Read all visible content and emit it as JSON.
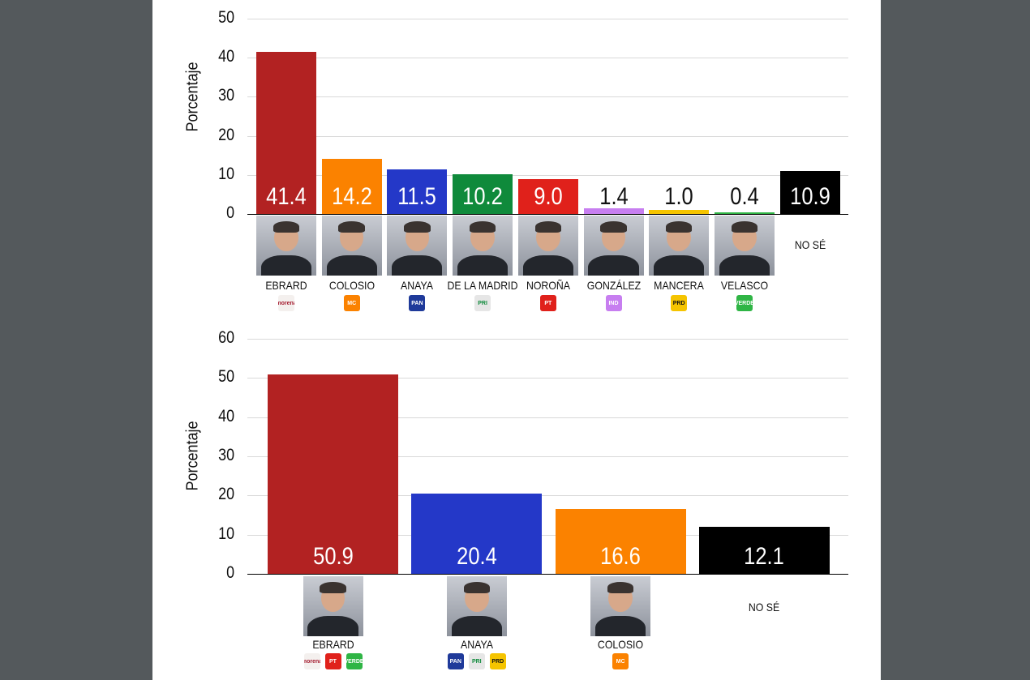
{
  "chart_data": [
    {
      "type": "bar",
      "ylabel": "Porcentaje",
      "ylim": [
        0,
        50
      ],
      "yticks": [
        0,
        10,
        20,
        30,
        40,
        50
      ],
      "grid": true,
      "categories": [
        "EBRARD",
        "COLOSIO",
        "ANAYA",
        "DE LA MADRID",
        "NOROÑA",
        "GONZÁLEZ",
        "MANCERA",
        "VELASCO",
        "NO SÉ"
      ],
      "values": [
        41.4,
        14.2,
        11.5,
        10.2,
        9.0,
        1.4,
        1.0,
        0.4,
        10.9
      ],
      "value_labels": [
        "41.4",
        "14.2",
        "11.5",
        "10.2",
        "9.0",
        "1.4",
        "1.0",
        "0.4",
        "10.9"
      ],
      "colors": [
        "#b22222",
        "#fb8200",
        "#2438c8",
        "#0f8a3b",
        "#e0211b",
        "#c77ef0",
        "#f5c400",
        "#2fb545",
        "#000000"
      ],
      "parties": [
        [
          "morena"
        ],
        [
          "MC"
        ],
        [
          "PAN"
        ],
        [
          "PRI"
        ],
        [
          "PT"
        ],
        [
          "IND"
        ],
        [
          "PRD"
        ],
        [
          "VERDE"
        ],
        []
      ],
      "photos": [
        true,
        true,
        true,
        true,
        true,
        true,
        true,
        true,
        false
      ]
    },
    {
      "type": "bar",
      "ylabel": "Porcentaje",
      "ylim": [
        0,
        60
      ],
      "yticks": [
        0,
        10,
        20,
        30,
        40,
        50,
        60
      ],
      "grid": true,
      "categories": [
        "EBRARD",
        "ANAYA",
        "COLOSIO",
        "NO SÉ"
      ],
      "values": [
        50.9,
        20.4,
        16.6,
        12.1
      ],
      "value_labels": [
        "50.9",
        "20.4",
        "16.6",
        "12.1"
      ],
      "colors": [
        "#b22222",
        "#2438c8",
        "#fb8200",
        "#000000"
      ],
      "parties": [
        [
          "morena",
          "PT",
          "VERDE"
        ],
        [
          "PAN",
          "PRI",
          "PRD"
        ],
        [
          "MC"
        ],
        []
      ],
      "photos": [
        true,
        true,
        true,
        false
      ]
    }
  ],
  "party_colors": {
    "morena": "#f4f0ee",
    "MC": "#fb8200",
    "PAN": "#1f3a9a",
    "PRI": "#e6e6e6",
    "PT": "#e0211b",
    "IND": "#c77ef0",
    "PRD": "#f5c400",
    "VERDE": "#2fb545"
  },
  "party_text_colors": {
    "morena": "#a51c30",
    "PRI": "#0f8a3b",
    "PRD": "#111111"
  }
}
